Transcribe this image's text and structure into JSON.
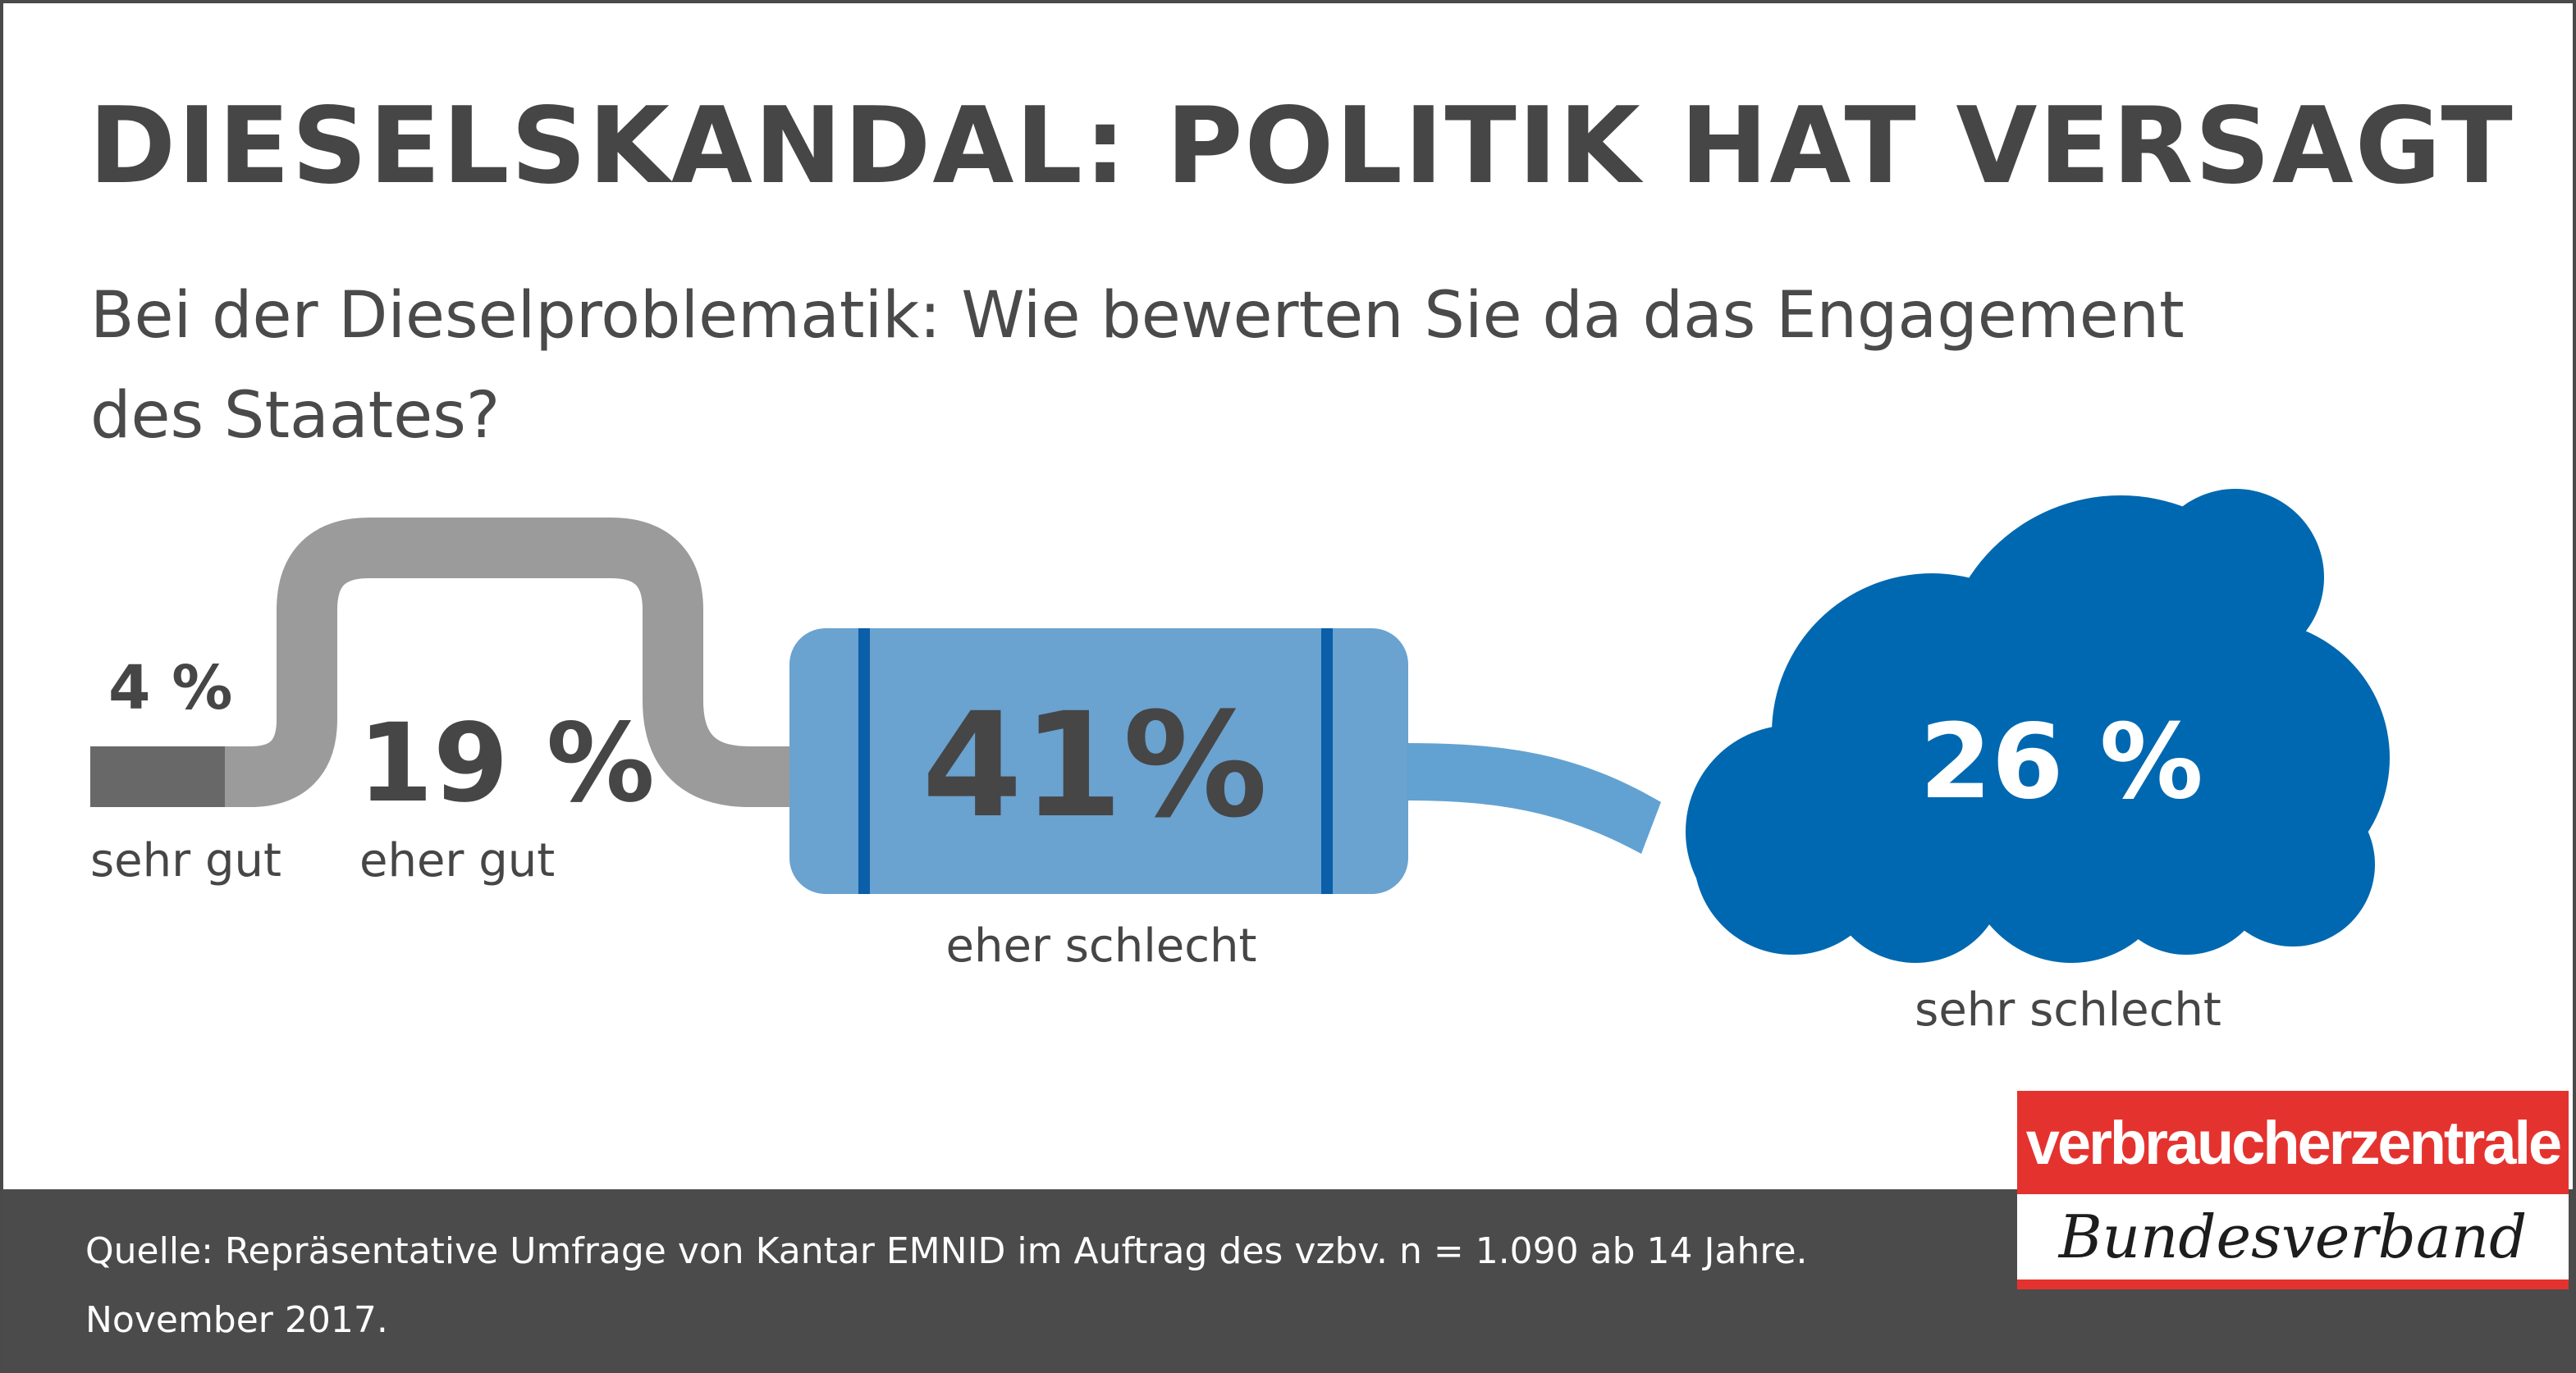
{
  "title": "DIESELSKANDAL: POLITIK HAT VERSAGT",
  "subtitle": "Bei der Dieselproblematik: Wie bewerten Sie da das Engagement des Staates?",
  "chart_data": {
    "type": "pie",
    "categories": [
      "sehr gut",
      "eher gut",
      "eher schlecht",
      "sehr schlecht"
    ],
    "values": [
      4,
      19,
      41,
      26
    ],
    "value_labels": [
      "4 %",
      "19 %",
      "41%",
      "26 %"
    ],
    "unit": "%"
  },
  "colors": {
    "sehr_gut": "#686868",
    "eher_gut": "#9c9b9b",
    "eher_schlecht": "#6aa2d0",
    "eher_schlecht_stripe": "#0b5ea8",
    "sehr_schlecht": "#0068b0",
    "pipe": "#62a2d2",
    "text": "#464646",
    "footer": "#4b4b4b",
    "logo_red": "#e4332f"
  },
  "footer": {
    "source": "Quelle: Repräsentative Umfrage von Kantar EMNID im Auftrag des vzbv. n = 1.090 ab 14 Jahre. November 2017."
  },
  "logo": {
    "top": "verbraucherzentrale",
    "bottom": "Bundesverband"
  }
}
